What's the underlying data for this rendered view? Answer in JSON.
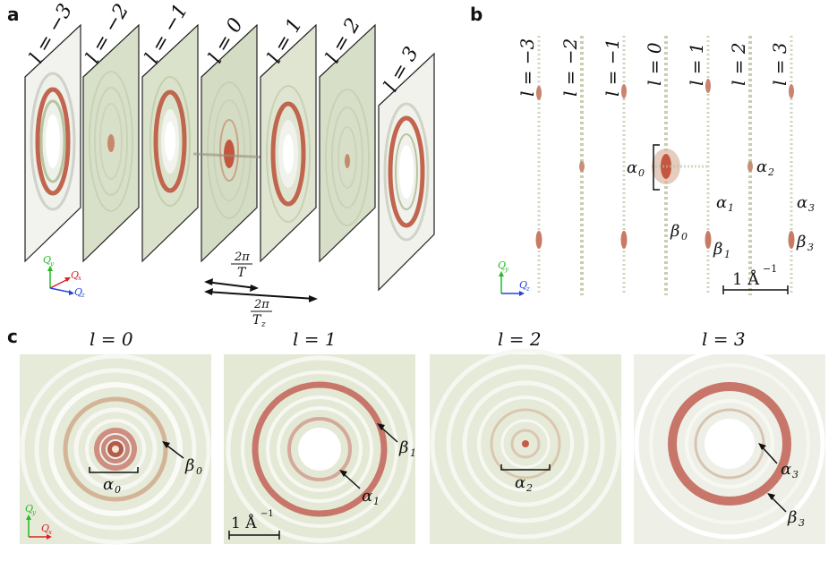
{
  "panels": {
    "a": {
      "letter": "a"
    },
    "b": {
      "letter": "b"
    },
    "c": {
      "letter": "c"
    }
  },
  "panel_a": {
    "slice_labels": [
      "l = −3",
      "l = −2",
      "l = −1",
      "l = 0",
      "l = 1",
      "l = 2",
      "l = 3"
    ],
    "spacing_small": {
      "num": "2π",
      "den": "T"
    },
    "spacing_large": {
      "num": "2π",
      "den": "T",
      "den_sub": "z"
    },
    "axes": {
      "y": "Q",
      "y_sub": "y",
      "x": "Q",
      "x_sub": "x",
      "z": "Q",
      "z_sub": "z"
    }
  },
  "panel_b": {
    "column_labels": [
      "l = −3",
      "l = −2",
      "l = −1",
      "l = 0",
      "l = 1",
      "l = 2",
      "l = 3"
    ],
    "annotations": {
      "alpha0": "α",
      "alpha0_sub": "0",
      "alpha1": "α",
      "alpha1_sub": "1",
      "alpha2": "α",
      "alpha2_sub": "2",
      "alpha3": "α",
      "alpha3_sub": "3",
      "beta0": "β",
      "beta0_sub": "0",
      "beta1": "β",
      "beta1_sub": "1",
      "beta3": "β",
      "beta3_sub": "3"
    },
    "scale_bar": "1 Å",
    "scale_bar_exp": "−1",
    "axes": {
      "y": "Q",
      "y_sub": "y",
      "z": "Q",
      "z_sub": "z"
    }
  },
  "panel_c": {
    "titles": [
      "l = 0",
      "l = 1",
      "l = 2",
      "l = 3"
    ],
    "annotations": {
      "alpha0": "α",
      "alpha0_sub": "0",
      "beta0": "β",
      "beta0_sub": "0",
      "alpha1": "α",
      "alpha1_sub": "1",
      "beta1": "β",
      "beta1_sub": "1",
      "alpha2": "α",
      "alpha2_sub": "2",
      "alpha3": "α",
      "alpha3_sub": "3",
      "beta3": "β",
      "beta3_sub": "3"
    },
    "scale_bar": "1 Å",
    "scale_bar_exp": "−1",
    "axes": {
      "y": "Q",
      "y_sub": "y",
      "x": "Q",
      "x_sub": "x"
    }
  },
  "colors": {
    "ring_red": "#c0685a",
    "ring_green": "#b9c6a0",
    "ring_white": "#ffffff",
    "bg_pattern": "#dfe6d4",
    "axis_y": "#22bb22",
    "axis_x": "#dd2222",
    "axis_z": "#2244dd"
  }
}
